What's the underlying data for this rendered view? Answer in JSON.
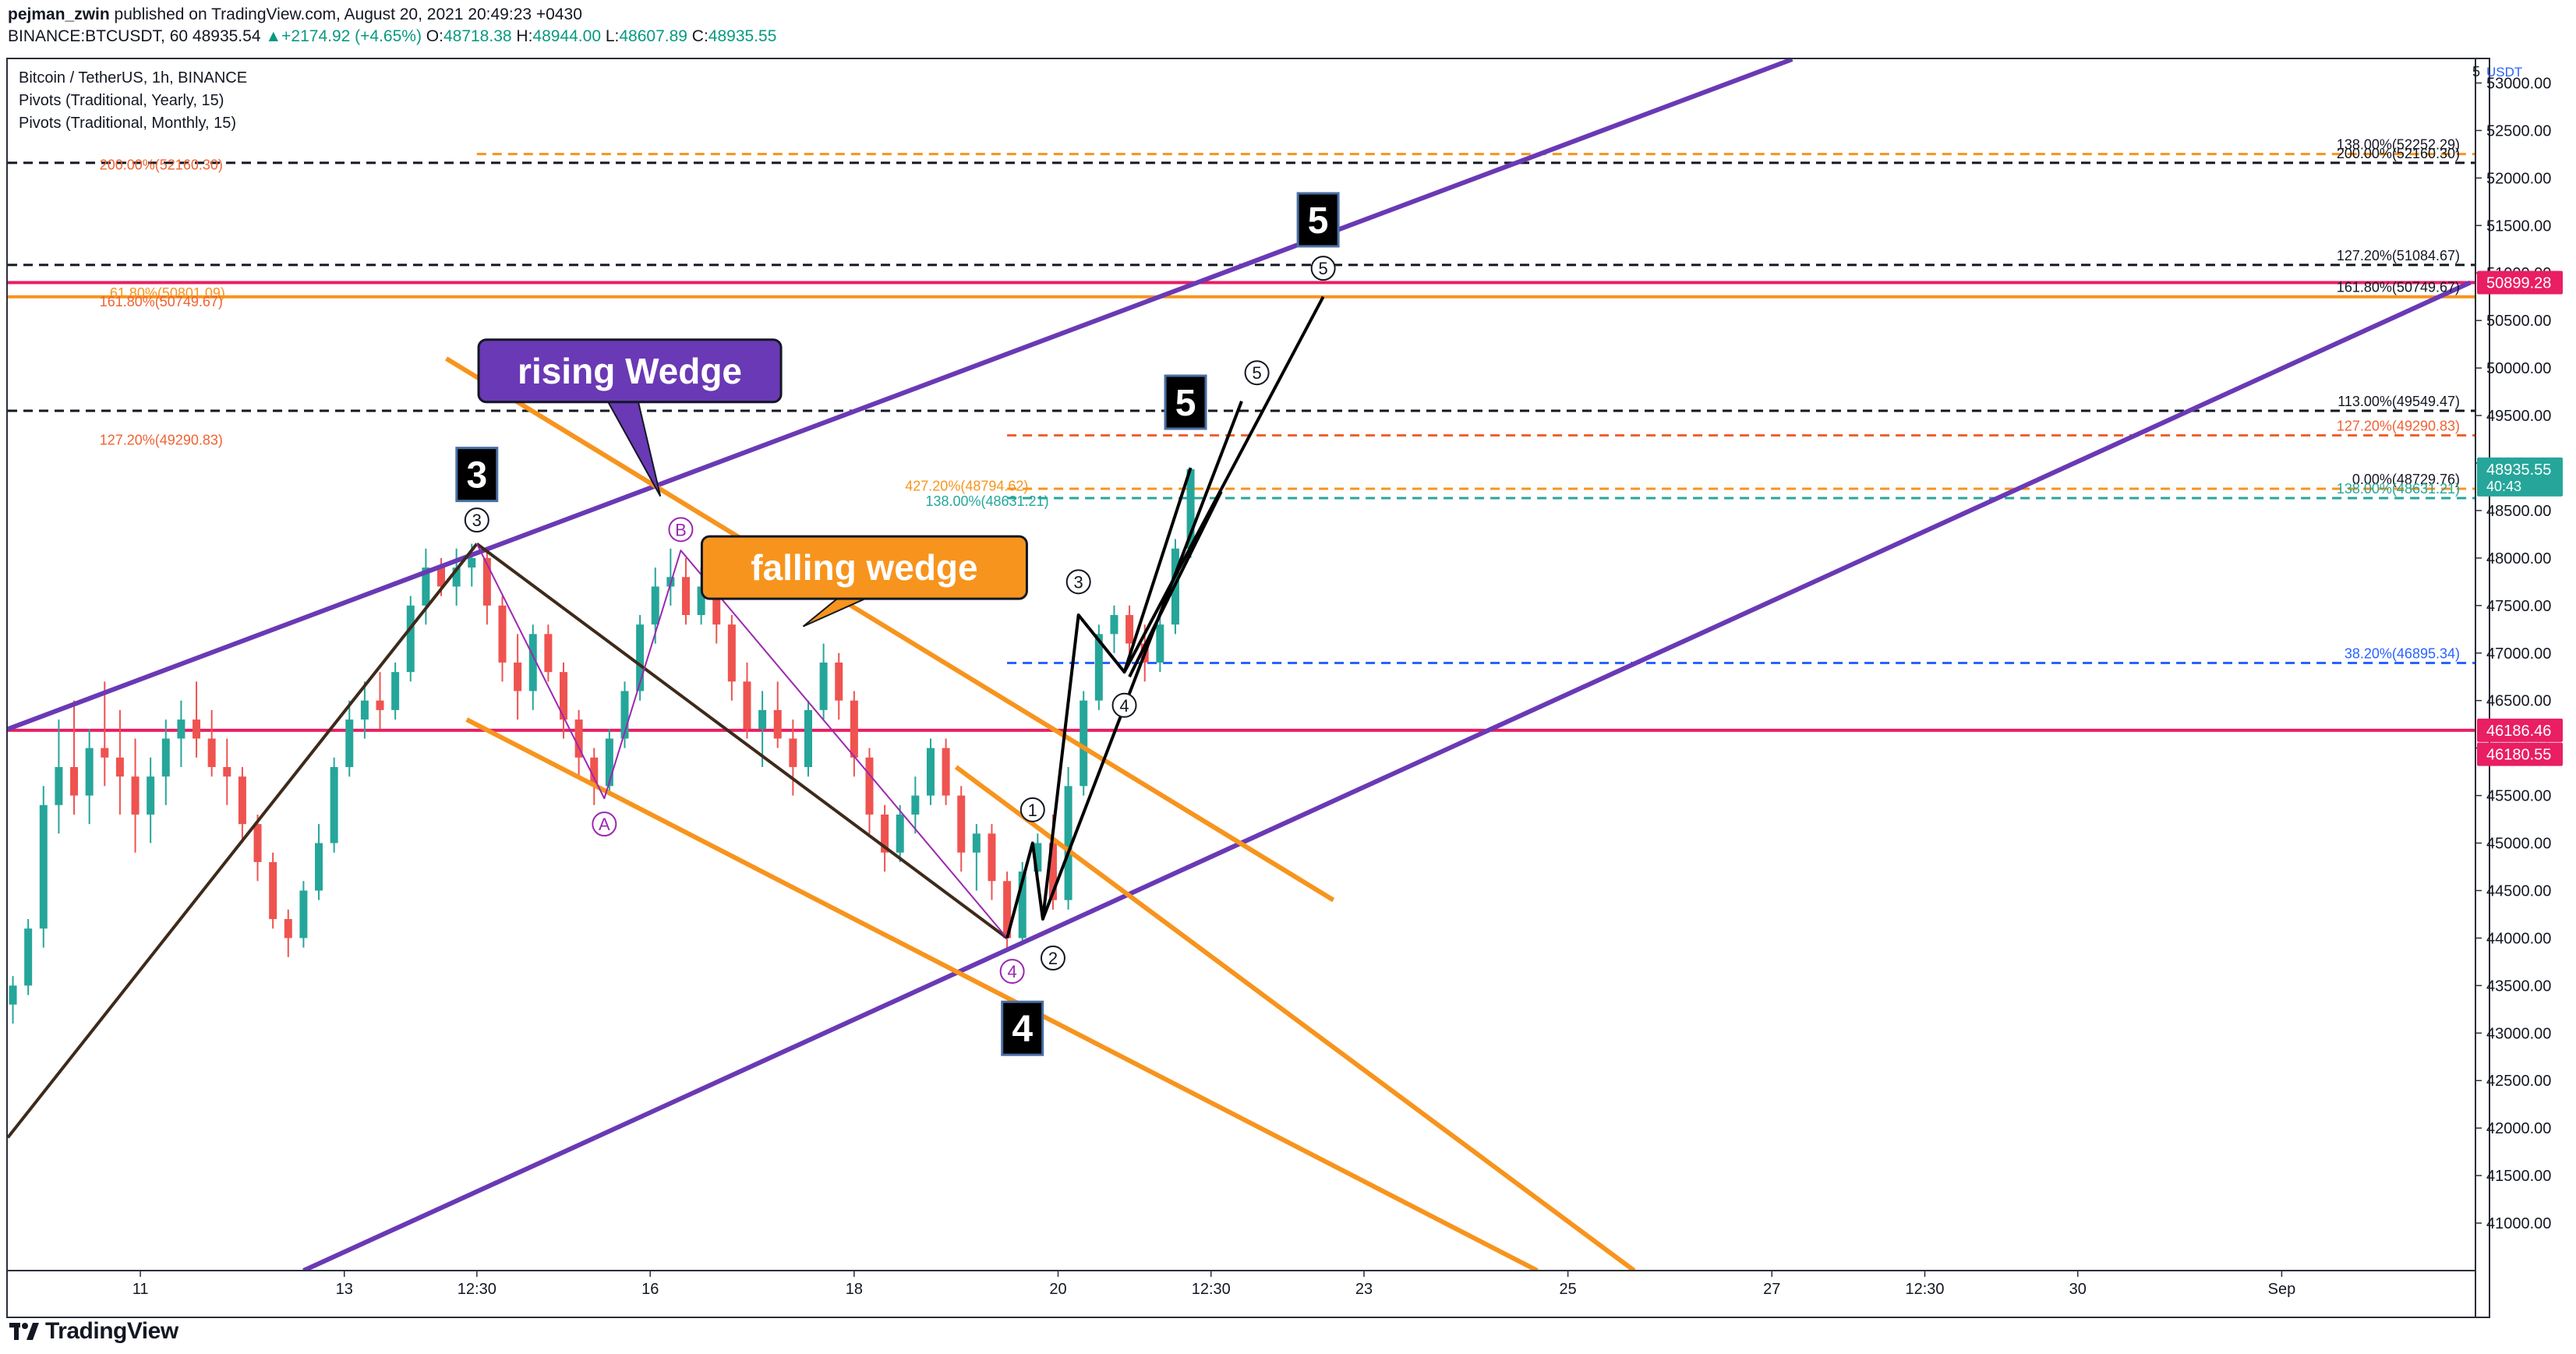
{
  "header": {
    "author": "pejman_zwin",
    "published_text": "published on TradingView.com, August 20, 2021 20:49:23 +0430",
    "symbol_line": "BINANCE:BTCUSDT, 60",
    "last": "48935.54",
    "change_arrow": "▲",
    "change": "+2174.92 (+4.65%)",
    "open_label": "O:",
    "open": "48718.38",
    "high_label": "H:",
    "high": "48944.00",
    "low_label": "L:",
    "low": "48607.89",
    "close_label": "C:",
    "close": "48935.55"
  },
  "legend": {
    "title": "Bitcoin / TetherUS, 1h, BINANCE",
    "pivot_yearly": "Pivots (Traditional, Yearly, 15)",
    "pivot_monthly": "Pivots (Traditional, Monthly, 15)"
  },
  "footer": {
    "logo_text": "TradingView",
    "logo_icon": "tradingview-logo-icon"
  },
  "colors": {
    "purple": "#6a39b5",
    "orange": "#f7941d",
    "pink": "#e91e63",
    "up": "#26a69a",
    "down": "#ef5350"
  },
  "chart_data": {
    "type": "candlestick",
    "symbol": "BTCUSDT",
    "interval": "1h",
    "currency": "USDT",
    "ylim": [
      40500,
      53250
    ],
    "y_ticks": [
      41000,
      41500,
      42000,
      42500,
      43000,
      43500,
      44000,
      44500,
      45000,
      45500,
      46000,
      46500,
      47000,
      47500,
      48000,
      48500,
      49000,
      49500,
      50000,
      50500,
      51000,
      51500,
      52000,
      52500,
      53000
    ],
    "y_tick_labels": [
      "41000.00",
      "41500.00",
      "42000.00",
      "42500.00",
      "43000.00",
      "43500.00",
      "44000.00",
      "44500.00",
      "45000.00",
      "45500.00",
      "46000.00",
      "46500.00",
      "47000.00",
      "47500.00",
      "48000.00",
      "48500.00",
      "49000.00",
      "49500.00",
      "50000.00",
      "50500.00",
      "51000.00",
      "51500.00",
      "52000.00",
      "52500.00",
      "53000.00"
    ],
    "x_domain": [
      9.7,
      33.9
    ],
    "x_ticks": [
      {
        "x": 11,
        "label": "11"
      },
      {
        "x": 13,
        "label": "13"
      },
      {
        "x": 14.3,
        "label": "12:30"
      },
      {
        "x": 16,
        "label": "16"
      },
      {
        "x": 18,
        "label": "18"
      },
      {
        "x": 20,
        "label": "20"
      },
      {
        "x": 21.5,
        "label": "12:30"
      },
      {
        "x": 23,
        "label": "23"
      },
      {
        "x": 25,
        "label": "25"
      },
      {
        "x": 27,
        "label": "27"
      },
      {
        "x": 28.5,
        "label": "12:30"
      },
      {
        "x": 30,
        "label": "30"
      },
      {
        "x": 32,
        "label": "Sep"
      }
    ],
    "ohlc": [
      [
        9.75,
        43300,
        43600,
        43100,
        43500
      ],
      [
        9.9,
        43500,
        44200,
        43400,
        44100
      ],
      [
        10.05,
        44100,
        45600,
        43900,
        45400
      ],
      [
        10.2,
        45400,
        46300,
        45100,
        45800
      ],
      [
        10.35,
        45800,
        46500,
        45300,
        45500
      ],
      [
        10.5,
        45500,
        46200,
        45200,
        46000
      ],
      [
        10.65,
        46000,
        46700,
        45600,
        45900
      ],
      [
        10.8,
        45900,
        46400,
        45300,
        45700
      ],
      [
        10.95,
        45700,
        46100,
        44900,
        45300
      ],
      [
        11.1,
        45300,
        45900,
        45000,
        45700
      ],
      [
        11.25,
        45700,
        46300,
        45400,
        46100
      ],
      [
        11.4,
        46100,
        46500,
        45800,
        46300
      ],
      [
        11.55,
        46300,
        46700,
        45900,
        46100
      ],
      [
        11.7,
        46100,
        46400,
        45700,
        45800
      ],
      [
        11.85,
        45800,
        46100,
        45400,
        45700
      ],
      [
        12.0,
        45700,
        45800,
        45000,
        45200
      ],
      [
        12.15,
        45200,
        45300,
        44600,
        44800
      ],
      [
        12.3,
        44800,
        44900,
        44100,
        44200
      ],
      [
        12.45,
        44200,
        44300,
        43800,
        44000
      ],
      [
        12.6,
        44000,
        44600,
        43900,
        44500
      ],
      [
        12.75,
        44500,
        45200,
        44400,
        45000
      ],
      [
        12.9,
        45000,
        45900,
        44900,
        45800
      ],
      [
        13.05,
        45800,
        46500,
        45700,
        46300
      ],
      [
        13.2,
        46300,
        46700,
        46100,
        46500
      ],
      [
        13.35,
        46500,
        46800,
        46200,
        46400
      ],
      [
        13.5,
        46400,
        46900,
        46300,
        46800
      ],
      [
        13.65,
        46800,
        47600,
        46700,
        47500
      ],
      [
        13.8,
        47500,
        48100,
        47300,
        47900
      ],
      [
        13.95,
        47900,
        48000,
        47600,
        47700
      ],
      [
        14.1,
        47700,
        48100,
        47500,
        47900
      ],
      [
        14.25,
        47900,
        48150,
        47700,
        48000
      ],
      [
        14.4,
        48000,
        48100,
        47300,
        47500
      ],
      [
        14.55,
        47500,
        47600,
        46700,
        46900
      ],
      [
        14.7,
        46900,
        47200,
        46300,
        46600
      ],
      [
        14.85,
        46600,
        47300,
        46400,
        47200
      ],
      [
        15.0,
        47200,
        47300,
        46700,
        46800
      ],
      [
        15.15,
        46800,
        46900,
        46100,
        46300
      ],
      [
        15.3,
        46300,
        46400,
        45700,
        45900
      ],
      [
        15.45,
        45900,
        46000,
        45400,
        45600
      ],
      [
        15.6,
        45600,
        46200,
        45500,
        46100
      ],
      [
        15.75,
        46100,
        46700,
        46000,
        46600
      ],
      [
        15.9,
        46600,
        47400,
        46500,
        47300
      ],
      [
        16.05,
        47300,
        47900,
        47100,
        47700
      ],
      [
        16.2,
        47700,
        48100,
        47500,
        47800
      ],
      [
        16.35,
        47800,
        48000,
        47300,
        47400
      ],
      [
        16.5,
        47400,
        47900,
        47300,
        47700
      ],
      [
        16.65,
        47700,
        47800,
        47100,
        47300
      ],
      [
        16.8,
        47300,
        47400,
        46500,
        46700
      ],
      [
        16.95,
        46700,
        46900,
        46100,
        46200
      ],
      [
        17.1,
        46200,
        46600,
        45800,
        46400
      ],
      [
        17.25,
        46400,
        46700,
        46000,
        46100
      ],
      [
        17.4,
        46100,
        46300,
        45500,
        45800
      ],
      [
        17.55,
        45800,
        46500,
        45700,
        46400
      ],
      [
        17.7,
        46400,
        47100,
        46300,
        46900
      ],
      [
        17.85,
        46900,
        47000,
        46300,
        46500
      ],
      [
        18.0,
        46500,
        46600,
        45700,
        45900
      ],
      [
        18.15,
        45900,
        46000,
        45100,
        45300
      ],
      [
        18.3,
        45300,
        45400,
        44700,
        44900
      ],
      [
        18.45,
        44900,
        45400,
        44800,
        45300
      ],
      [
        18.6,
        45300,
        45700,
        45100,
        45500
      ],
      [
        18.75,
        45500,
        46100,
        45400,
        46000
      ],
      [
        18.9,
        46000,
        46100,
        45400,
        45500
      ],
      [
        19.05,
        45500,
        45600,
        44700,
        44900
      ],
      [
        19.2,
        44900,
        45200,
        44500,
        45100
      ],
      [
        19.35,
        45100,
        45200,
        44400,
        44600
      ],
      [
        19.5,
        44600,
        44700,
        43900,
        44000
      ],
      [
        19.65,
        44000,
        44800,
        43950,
        44700
      ],
      [
        19.8,
        44700,
        45100,
        44600,
        45000
      ],
      [
        19.95,
        45000,
        45300,
        44300,
        44400
      ],
      [
        20.1,
        44400,
        45800,
        44300,
        45600
      ],
      [
        20.25,
        45600,
        46600,
        45500,
        46500
      ],
      [
        20.4,
        46500,
        47300,
        46400,
        47200
      ],
      [
        20.55,
        47200,
        47500,
        47000,
        47400
      ],
      [
        20.7,
        47400,
        47500,
        47000,
        47100
      ],
      [
        20.85,
        47100,
        47300,
        46700,
        46900
      ],
      [
        21.0,
        46900,
        47400,
        46800,
        47300
      ],
      [
        21.15,
        47300,
        48200,
        47200,
        48100
      ],
      [
        21.3,
        48100,
        48950,
        48000,
        48935
      ]
    ],
    "horizontal_levels": [
      {
        "price": 52252.29,
        "label": "138.00%(52252.29)",
        "color": "#f7941d",
        "style": "dashed",
        "start": 14.3
      },
      {
        "price": 52160.3,
        "label": "200.00%(52160.30)",
        "color": "#131722",
        "style": "dashed",
        "start": 9.7
      },
      {
        "price": 51084.67,
        "label": "127.20%(51084.67)",
        "color": "#131722",
        "style": "dashed",
        "start": 9.7
      },
      {
        "price": 50899.28,
        "label": "",
        "color": "#e91e63",
        "style": "solid",
        "start": 9.7
      },
      {
        "price": 50749.67,
        "label": "161.80%(50749.67)",
        "color": "#f7941d",
        "style": "solid",
        "start": 9.7
      },
      {
        "price": 49549.47,
        "label": "113.00%(49549.47)",
        "color": "#131722",
        "style": "dashed",
        "start": 9.7
      },
      {
        "price": 49290.83,
        "label": "127.20%(49290.83)",
        "color": "#f06233",
        "style": "dashed",
        "start": 19.5
      },
      {
        "price": 48729.76,
        "label": "0.00%(48729.76)",
        "color": "#f7941d",
        "style": "dashed",
        "start": 19.5
      },
      {
        "price": 48631.21,
        "label": "138.00%(48631.21)",
        "color": "#26a69a",
        "style": "dashed",
        "start": 19.5
      },
      {
        "price": 46895.34,
        "label": "38.20%(46895.34)",
        "color": "#2962ff",
        "style": "dashed",
        "start": 19.5
      },
      {
        "price": 46186.46,
        "label": "",
        "color": "#e91e63",
        "style": "solid",
        "start": 9.7
      }
    ],
    "level_left_labels": [
      {
        "label": "200.00%(52160.30)",
        "color": "#f06233"
      },
      {
        "label": "61.80%(50801.09)",
        "color": "#f7941d"
      },
      {
        "label": "161.80%(50749.67)",
        "color": "#f06233"
      },
      {
        "label": "127.20%(49290.83)",
        "color": "#f06233"
      },
      {
        "label": "427.20%(48794.62)",
        "color": "#f7941d"
      },
      {
        "label": "138.00%(48631.21)",
        "color": "#26a69a"
      }
    ],
    "price_tags": [
      {
        "price": 50899.28,
        "label": "50899.28",
        "color": "#e91e63"
      },
      {
        "price": 48935.55,
        "label": "48935.55",
        "sub": "40:43",
        "color": "#26a69a"
      },
      {
        "price": 46186.46,
        "label": "46186.46",
        "color": "#e91e63"
      },
      {
        "price": 46180.55,
        "label": "46180.55",
        "color": "#e91e63"
      }
    ],
    "trendlines": [
      {
        "name": "rising-channel-upper",
        "color": "#6a39b5",
        "width": 6,
        "points": [
          [
            9.7,
            46200
          ],
          [
            27.2,
            53250
          ]
        ]
      },
      {
        "name": "rising-channel-lower",
        "color": "#6a39b5",
        "width": 6,
        "points": [
          [
            12.6,
            40500
          ],
          [
            33.85,
            50900
          ]
        ]
      },
      {
        "name": "falling-wedge-upper",
        "color": "#f7941d",
        "width": 6,
        "points": [
          [
            14.0,
            50100
          ],
          [
            22.7,
            44400
          ]
        ]
      },
      {
        "name": "falling-wedge-lower",
        "color": "#f7941d",
        "width": 6,
        "points": [
          [
            14.2,
            46300
          ],
          [
            24.7,
            40500
          ]
        ]
      },
      {
        "name": "falling-wedge-cross",
        "color": "#f7941d",
        "width": 6,
        "points": [
          [
            19.0,
            45800
          ],
          [
            25.65,
            40500
          ]
        ]
      },
      {
        "name": "impulse-up",
        "color": "#3e2a1a",
        "width": 4,
        "points": [
          [
            9.7,
            41900
          ],
          [
            14.3,
            48150
          ]
        ]
      },
      {
        "name": "impulse-down",
        "color": "#3e2a1a",
        "width": 4,
        "points": [
          [
            14.3,
            48150
          ],
          [
            19.5,
            44000
          ]
        ]
      },
      {
        "name": "abc-correction",
        "color": "#9c27b0",
        "width": 2,
        "points": [
          [
            14.3,
            48150
          ],
          [
            15.55,
            45470
          ],
          [
            16.3,
            48080
          ],
          [
            19.5,
            44000
          ]
        ]
      },
      {
        "name": "wave-path",
        "color": "#000000",
        "width": 4,
        "points": [
          [
            19.5,
            44000
          ],
          [
            19.75,
            45000
          ],
          [
            19.85,
            44200
          ],
          [
            20.2,
            47400
          ],
          [
            20.65,
            46800
          ],
          [
            21.3,
            48950
          ]
        ]
      },
      {
        "name": "projection-a",
        "color": "#000000",
        "width": 4,
        "points": [
          [
            19.85,
            44200
          ],
          [
            21.8,
            49650
          ]
        ]
      },
      {
        "name": "projection-b",
        "color": "#000000",
        "width": 4,
        "points": [
          [
            20.65,
            46800
          ],
          [
            22.6,
            50750
          ]
        ]
      },
      {
        "name": "projection-c",
        "color": "#000000",
        "width": 4,
        "points": [
          [
            20.7,
            46750
          ],
          [
            21.6,
            48700
          ]
        ]
      }
    ],
    "wave_markers": [
      {
        "label": "3",
        "x": 14.3,
        "price": 48400,
        "color": "#131722"
      },
      {
        "label": "B",
        "x": 16.3,
        "price": 48300,
        "color": "#9c27b0"
      },
      {
        "label": "A",
        "x": 15.55,
        "price": 45200,
        "color": "#9c27b0"
      },
      {
        "label": "4",
        "x": 19.55,
        "price": 43650,
        "color": "#9c27b0"
      },
      {
        "label": "1",
        "x": 19.75,
        "price": 45350,
        "color": "#131722"
      },
      {
        "label": "2",
        "x": 19.95,
        "price": 43790,
        "color": "#131722"
      },
      {
        "label": "3",
        "x": 20.2,
        "price": 47750,
        "color": "#131722"
      },
      {
        "label": "4",
        "x": 20.65,
        "price": 46450,
        "color": "#131722"
      },
      {
        "label": "5",
        "x": 21.95,
        "price": 49950,
        "color": "#131722"
      },
      {
        "label": "5",
        "x": 22.6,
        "price": 51050,
        "color": "#131722"
      }
    ],
    "wave_boxes": [
      {
        "label": "3",
        "x": 14.3,
        "price": 48880
      },
      {
        "label": "4",
        "x": 19.65,
        "price": 43050
      },
      {
        "label": "5",
        "x": 21.25,
        "price": 49640
      },
      {
        "label": "5",
        "x": 22.55,
        "price": 51560
      }
    ],
    "callouts": [
      {
        "text": "rising Wedge",
        "x": 15.8,
        "price": 49970,
        "bg": "#6a39b5",
        "fg": "#ffffff",
        "tail_x": 16.1,
        "tail_price": 48650
      },
      {
        "text": "falling wedge",
        "x": 18.1,
        "price": 47900,
        "bg": "#f7941d",
        "fg": "#ffffff",
        "tail_x": 17.5,
        "tail_price": 47280
      }
    ]
  }
}
